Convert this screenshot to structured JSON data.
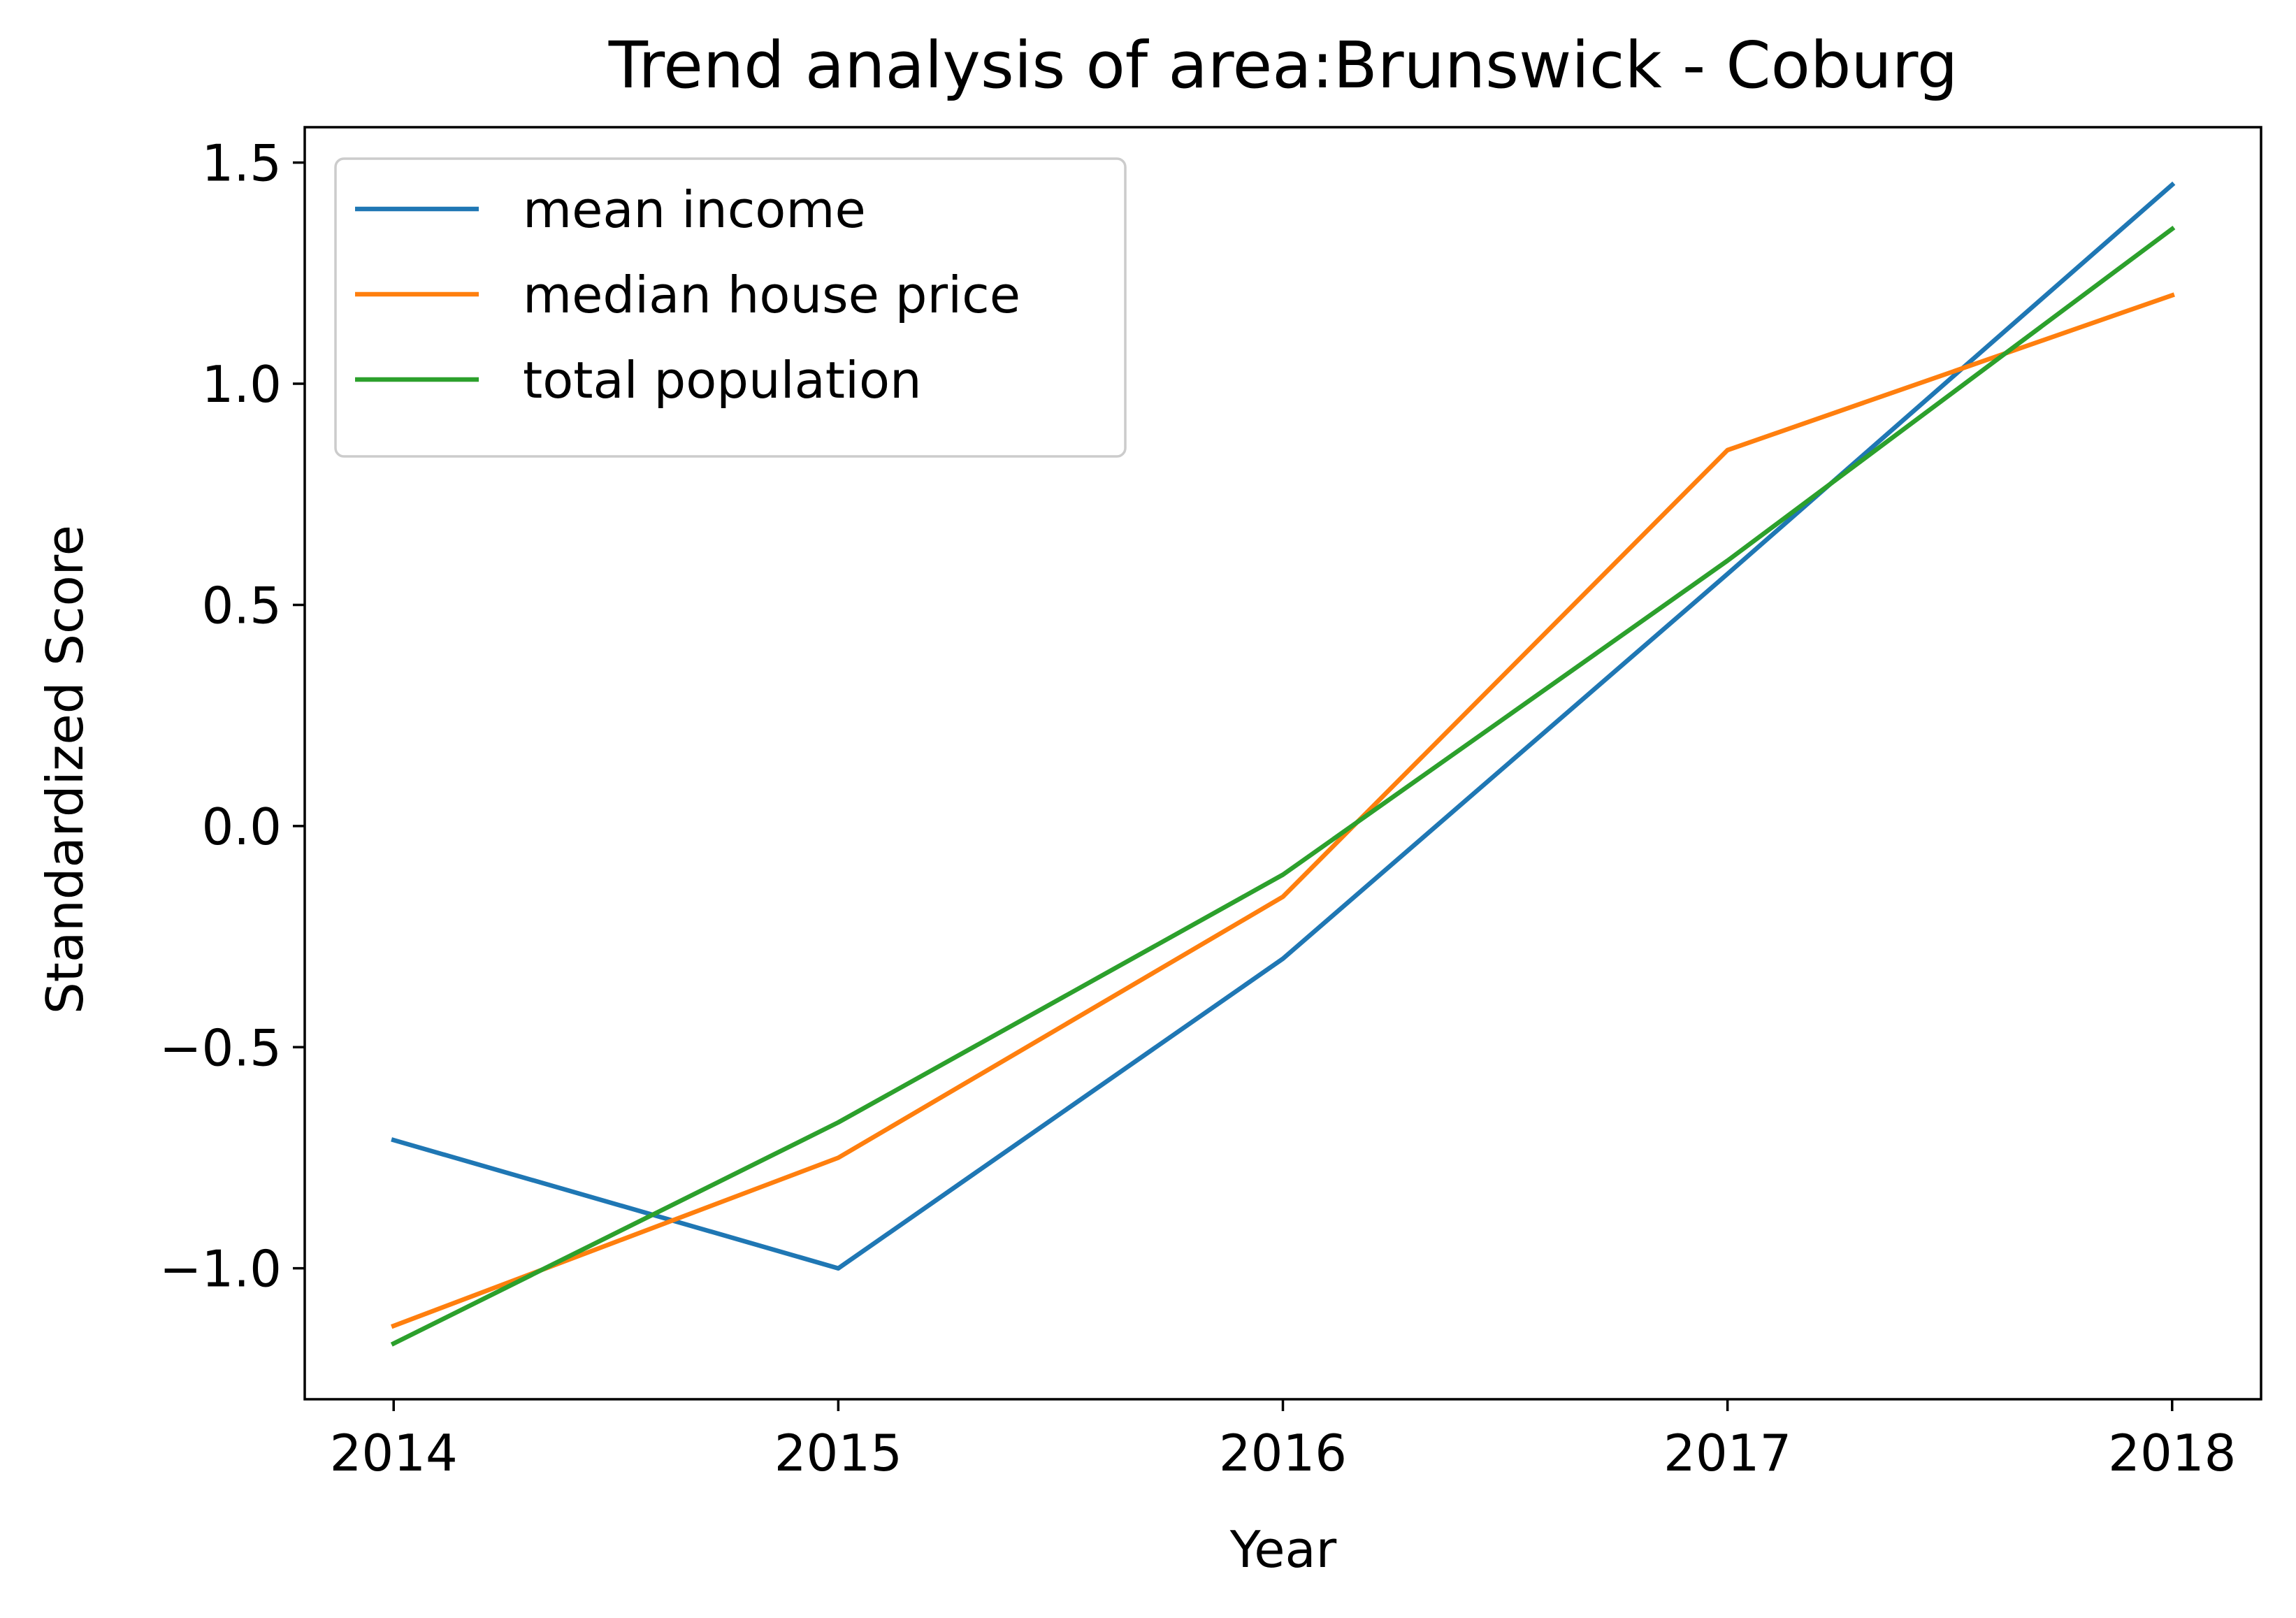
{
  "chart_data": {
    "type": "line",
    "title": "Trend analysis of area:Brunswick - Coburg",
    "xlabel": "Year",
    "ylabel": "Standardized Score",
    "x": [
      2014,
      2015,
      2016,
      2017,
      2018
    ],
    "x_tick_labels": [
      "2014",
      "2015",
      "2016",
      "2017",
      "2018"
    ],
    "xlim": [
      2013.8,
      2018.2
    ],
    "ylim": [
      -1.296,
      1.58
    ],
    "y_ticks": [
      -1.0,
      -0.5,
      0.0,
      0.5,
      1.0,
      1.5
    ],
    "y_tick_labels": [
      "−1.0",
      "−0.5",
      "0.0",
      "0.5",
      "1.0",
      "1.5"
    ],
    "grid": false,
    "legend_position": "top-left",
    "series": [
      {
        "name": "mean income",
        "color": "#1f77b4",
        "values": [
          -0.71,
          -1.0,
          -0.3,
          0.57,
          1.45
        ]
      },
      {
        "name": "median house price",
        "color": "#ff7f0e",
        "values": [
          -1.13,
          -0.75,
          -0.16,
          0.85,
          1.2
        ]
      },
      {
        "name": "total population",
        "color": "#2ca02c",
        "values": [
          -1.17,
          -0.67,
          -0.11,
          0.6,
          1.35
        ]
      }
    ]
  }
}
